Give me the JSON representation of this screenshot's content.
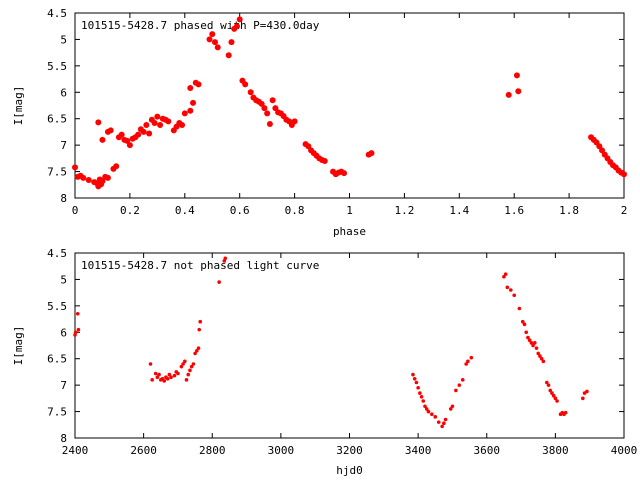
{
  "chart_data": [
    {
      "type": "scatter",
      "title": "101515-5428.7 phased with P=430.0day",
      "xlabel": "phase",
      "ylabel": "I[mag]",
      "xlim": [
        0,
        2
      ],
      "ylim": [
        8,
        4.5
      ],
      "y_inverted": true,
      "grid": false,
      "marker_color": "#ff0000",
      "xticks": [
        "0",
        "0.2",
        "0.4",
        "0.6",
        "0.8",
        "1",
        "1.2",
        "1.4",
        "1.6",
        "1.8",
        "2"
      ],
      "yticks": [
        "4.5",
        "5",
        "5.5",
        "6",
        "6.5",
        "7",
        "7.5",
        "8"
      ],
      "series": [
        {
          "points": [
            [
              0.0,
              7.42
            ],
            [
              0.01,
              7.6
            ],
            [
              0.02,
              7.58
            ],
            [
              0.03,
              7.62
            ],
            [
              0.05,
              7.66
            ],
            [
              0.07,
              7.7
            ],
            [
              0.08,
              7.72
            ],
            [
              0.085,
              7.78
            ],
            [
              0.09,
              7.65
            ],
            [
              0.095,
              7.74
            ],
            [
              0.1,
              7.68
            ],
            [
              0.11,
              7.6
            ],
            [
              0.12,
              7.62
            ],
            [
              0.085,
              6.57
            ],
            [
              0.1,
              6.9
            ],
            [
              0.12,
              6.75
            ],
            [
              0.13,
              6.72
            ],
            [
              0.14,
              7.45
            ],
            [
              0.15,
              7.4
            ],
            [
              0.16,
              6.85
            ],
            [
              0.17,
              6.8
            ],
            [
              0.18,
              6.9
            ],
            [
              0.19,
              6.92
            ],
            [
              0.2,
              7.0
            ],
            [
              0.21,
              6.88
            ],
            [
              0.22,
              6.85
            ],
            [
              0.23,
              6.8
            ],
            [
              0.24,
              6.7
            ],
            [
              0.25,
              6.75
            ],
            [
              0.26,
              6.62
            ],
            [
              0.27,
              6.78
            ],
            [
              0.28,
              6.52
            ],
            [
              0.29,
              6.58
            ],
            [
              0.3,
              6.46
            ],
            [
              0.31,
              6.62
            ],
            [
              0.32,
              6.5
            ],
            [
              0.33,
              6.52
            ],
            [
              0.34,
              6.55
            ],
            [
              0.36,
              6.72
            ],
            [
              0.37,
              6.65
            ],
            [
              0.38,
              6.58
            ],
            [
              0.39,
              6.62
            ],
            [
              0.4,
              6.4
            ],
            [
              0.42,
              6.35
            ],
            [
              0.43,
              6.2
            ],
            [
              0.44,
              5.82
            ],
            [
              0.45,
              5.85
            ],
            [
              0.42,
              5.92
            ],
            [
              0.49,
              5.0
            ],
            [
              0.5,
              4.9
            ],
            [
              0.51,
              5.05
            ],
            [
              0.52,
              5.15
            ],
            [
              0.56,
              5.3
            ],
            [
              0.57,
              5.05
            ],
            [
              0.58,
              4.8
            ],
            [
              0.59,
              4.75
            ],
            [
              0.6,
              4.62
            ],
            [
              0.61,
              5.78
            ],
            [
              0.62,
              5.85
            ],
            [
              0.64,
              6.0
            ],
            [
              0.65,
              6.1
            ],
            [
              0.66,
              6.15
            ],
            [
              0.67,
              6.18
            ],
            [
              0.68,
              6.22
            ],
            [
              0.69,
              6.3
            ],
            [
              0.7,
              6.4
            ],
            [
              0.71,
              6.6
            ],
            [
              0.72,
              6.15
            ],
            [
              0.73,
              6.3
            ],
            [
              0.74,
              6.38
            ],
            [
              0.75,
              6.4
            ],
            [
              0.76,
              6.45
            ],
            [
              0.77,
              6.52
            ],
            [
              0.78,
              6.55
            ],
            [
              0.79,
              6.62
            ],
            [
              0.8,
              6.55
            ],
            [
              0.84,
              6.98
            ],
            [
              0.85,
              7.02
            ],
            [
              0.86,
              7.1
            ],
            [
              0.87,
              7.15
            ],
            [
              0.88,
              7.2
            ],
            [
              0.89,
              7.25
            ],
            [
              0.9,
              7.28
            ],
            [
              0.91,
              7.3
            ],
            [
              0.94,
              7.5
            ],
            [
              0.95,
              7.55
            ],
            [
              0.96,
              7.52
            ],
            [
              0.97,
              7.5
            ],
            [
              0.98,
              7.53
            ],
            [
              1.07,
              7.18
            ],
            [
              1.08,
              7.15
            ],
            [
              1.58,
              6.05
            ],
            [
              1.61,
              5.68
            ],
            [
              1.615,
              5.98
            ],
            [
              1.88,
              6.85
            ],
            [
              1.89,
              6.9
            ],
            [
              1.9,
              6.95
            ],
            [
              1.91,
              7.02
            ],
            [
              1.92,
              7.1
            ],
            [
              1.93,
              7.18
            ],
            [
              1.94,
              7.25
            ],
            [
              1.95,
              7.32
            ],
            [
              1.96,
              7.38
            ],
            [
              1.97,
              7.42
            ],
            [
              1.98,
              7.48
            ],
            [
              1.99,
              7.52
            ],
            [
              2.0,
              7.55
            ]
          ]
        }
      ]
    },
    {
      "type": "scatter",
      "title": "101515-5428.7 not phased light curve",
      "xlabel": "hjd0",
      "ylabel": "I[mag]",
      "xlim": [
        2400,
        4000
      ],
      "ylim": [
        8,
        4.5
      ],
      "y_inverted": true,
      "grid": false,
      "marker_color": "#ff0000",
      "xticks": [
        "2400",
        "2600",
        "2800",
        "3000",
        "3200",
        "3400",
        "3600",
        "3800",
        "4000"
      ],
      "yticks": [
        "4.5",
        "5",
        "5.5",
        "6",
        "6.5",
        "7",
        "7.5",
        "8"
      ],
      "series": [
        {
          "points": [
            [
              2400,
              6.05
            ],
            [
              2402,
              6.0
            ],
            [
              2408,
              5.65
            ],
            [
              2410,
              5.95
            ],
            [
              2620,
              6.6
            ],
            [
              2625,
              6.9
            ],
            [
              2635,
              6.78
            ],
            [
              2640,
              6.85
            ],
            [
              2645,
              6.8
            ],
            [
              2650,
              6.9
            ],
            [
              2655,
              6.88
            ],
            [
              2660,
              6.92
            ],
            [
              2665,
              6.85
            ],
            [
              2670,
              6.88
            ],
            [
              2675,
              6.8
            ],
            [
              2680,
              6.85
            ],
            [
              2690,
              6.82
            ],
            [
              2695,
              6.75
            ],
            [
              2700,
              6.78
            ],
            [
              2710,
              6.65
            ],
            [
              2715,
              6.6
            ],
            [
              2720,
              6.55
            ],
            [
              2725,
              6.9
            ],
            [
              2730,
              6.8
            ],
            [
              2735,
              6.72
            ],
            [
              2740,
              6.65
            ],
            [
              2745,
              6.6
            ],
            [
              2750,
              6.4
            ],
            [
              2755,
              6.35
            ],
            [
              2760,
              6.3
            ],
            [
              2765,
              5.8
            ],
            [
              2762,
              5.95
            ],
            [
              2820,
              5.05
            ],
            [
              2835,
              4.65
            ],
            [
              2838,
              4.6
            ],
            [
              3385,
              6.8
            ],
            [
              3390,
              6.88
            ],
            [
              3395,
              6.95
            ],
            [
              3400,
              7.05
            ],
            [
              3405,
              7.15
            ],
            [
              3410,
              7.22
            ],
            [
              3415,
              7.3
            ],
            [
              3420,
              7.4
            ],
            [
              3425,
              7.45
            ],
            [
              3430,
              7.5
            ],
            [
              3440,
              7.55
            ],
            [
              3450,
              7.6
            ],
            [
              3460,
              7.7
            ],
            [
              3470,
              7.78
            ],
            [
              3475,
              7.72
            ],
            [
              3480,
              7.65
            ],
            [
              3495,
              7.45
            ],
            [
              3500,
              7.4
            ],
            [
              3510,
              7.1
            ],
            [
              3520,
              7.0
            ],
            [
              3530,
              6.9
            ],
            [
              3540,
              6.6
            ],
            [
              3545,
              6.55
            ],
            [
              3555,
              6.48
            ],
            [
              3650,
              4.95
            ],
            [
              3655,
              4.9
            ],
            [
              3660,
              5.15
            ],
            [
              3670,
              5.2
            ],
            [
              3680,
              5.3
            ],
            [
              3695,
              5.55
            ],
            [
              3705,
              5.8
            ],
            [
              3710,
              5.85
            ],
            [
              3715,
              6.0
            ],
            [
              3720,
              6.1
            ],
            [
              3725,
              6.15
            ],
            [
              3730,
              6.2
            ],
            [
              3735,
              6.25
            ],
            [
              3740,
              6.2
            ],
            [
              3745,
              6.3
            ],
            [
              3750,
              6.4
            ],
            [
              3755,
              6.45
            ],
            [
              3760,
              6.5
            ],
            [
              3765,
              6.55
            ],
            [
              3775,
              6.95
            ],
            [
              3780,
              7.0
            ],
            [
              3785,
              7.1
            ],
            [
              3790,
              7.15
            ],
            [
              3795,
              7.2
            ],
            [
              3800,
              7.25
            ],
            [
              3805,
              7.3
            ],
            [
              3815,
              7.55
            ],
            [
              3820,
              7.52
            ],
            [
              3825,
              7.55
            ],
            [
              3830,
              7.52
            ],
            [
              3880,
              7.25
            ],
            [
              3885,
              7.15
            ],
            [
              3892,
              7.12
            ]
          ]
        }
      ]
    }
  ]
}
